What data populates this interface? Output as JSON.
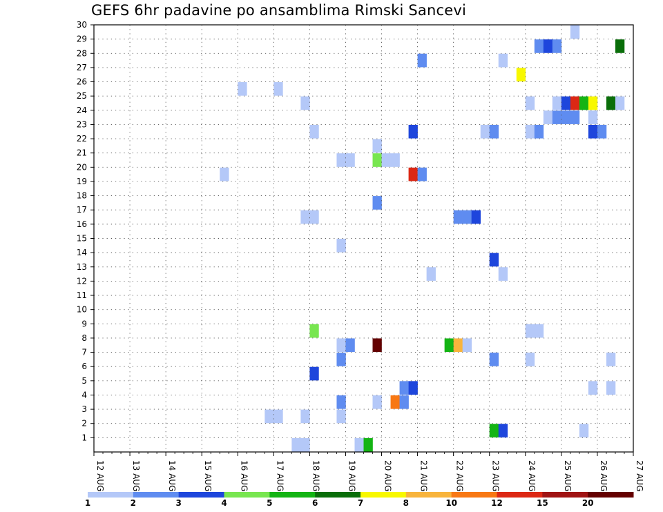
{
  "chart_data": {
    "type": "heatmap",
    "title": "GEFS 6hr padavine po ansamblima Rimski Sancevi",
    "xlabel": "",
    "ylabel": "",
    "x_tick_labels": [
      "12 AUG",
      "13 AUG",
      "14 AUG",
      "15 AUG",
      "16 AUG",
      "17 AUG",
      "18 AUG",
      "19 AUG",
      "20 AUG",
      "21 AUG",
      "22 AUG",
      "23 AUG",
      "24 AUG",
      "25 AUG",
      "26 AUG",
      "27 AUG"
    ],
    "x_range_days": [
      0,
      15
    ],
    "y_tick_labels": [
      "1",
      "2",
      "3",
      "4",
      "5",
      "6",
      "7",
      "8",
      "9",
      "10",
      "11",
      "12",
      "13",
      "14",
      "15",
      "16",
      "17",
      "18",
      "19",
      "20",
      "21",
      "22",
      "23",
      "24",
      "25",
      "26",
      "27",
      "28",
      "29",
      "30"
    ],
    "y_range": [
      0,
      30
    ],
    "grid": true,
    "colors": [
      "#b4c8f8",
      "#5f8cf0",
      "#1e46dc",
      "#78e650",
      "#14b414",
      "#0a6e0a",
      "#f8f800",
      "#f8b43c",
      "#f87814",
      "#dc2814",
      "#a01414",
      "#640000"
    ],
    "colorbar_labels": [
      "1",
      "2",
      "3",
      "4",
      "5",
      "6",
      "7",
      "8",
      "10",
      "12",
      "15",
      "20"
    ],
    "cells_note": "each cell: x = day offset from 12 AUG 00Z (6-hourly steps), y = ensemble member, v = color class index",
    "cells": [
      {
        "x": 5.5,
        "y": 0,
        "v": 0
      },
      {
        "x": 5.75,
        "y": 0,
        "v": 0
      },
      {
        "x": 7.25,
        "y": 0,
        "v": 0
      },
      {
        "x": 7.5,
        "y": 0,
        "v": 4
      },
      {
        "x": 11.0,
        "y": 1,
        "v": 4
      },
      {
        "x": 11.25,
        "y": 1,
        "v": 2
      },
      {
        "x": 13.5,
        "y": 1,
        "v": 0
      },
      {
        "x": 4.75,
        "y": 2,
        "v": 0
      },
      {
        "x": 5.0,
        "y": 2,
        "v": 0
      },
      {
        "x": 5.75,
        "y": 2,
        "v": 0
      },
      {
        "x": 6.75,
        "y": 2,
        "v": 0
      },
      {
        "x": 6.75,
        "y": 3,
        "v": 1
      },
      {
        "x": 7.75,
        "y": 3,
        "v": 0
      },
      {
        "x": 8.25,
        "y": 3,
        "v": 8
      },
      {
        "x": 8.5,
        "y": 3,
        "v": 1
      },
      {
        "x": 8.5,
        "y": 4,
        "v": 1
      },
      {
        "x": 8.75,
        "y": 4,
        "v": 2
      },
      {
        "x": 13.75,
        "y": 4,
        "v": 0
      },
      {
        "x": 14.25,
        "y": 4,
        "v": 0
      },
      {
        "x": 6.0,
        "y": 5,
        "v": 2
      },
      {
        "x": 6.75,
        "y": 6,
        "v": 1
      },
      {
        "x": 11.0,
        "y": 6,
        "v": 1
      },
      {
        "x": 12.0,
        "y": 6,
        "v": 0
      },
      {
        "x": 14.25,
        "y": 6,
        "v": 0
      },
      {
        "x": 6.75,
        "y": 7,
        "v": 0
      },
      {
        "x": 7.0,
        "y": 7,
        "v": 1
      },
      {
        "x": 7.75,
        "y": 7,
        "v": 11
      },
      {
        "x": 9.75,
        "y": 7,
        "v": 4
      },
      {
        "x": 10.0,
        "y": 7,
        "v": 7
      },
      {
        "x": 10.25,
        "y": 7,
        "v": 0
      },
      {
        "x": 6.0,
        "y": 8,
        "v": 3
      },
      {
        "x": 12.0,
        "y": 8,
        "v": 0
      },
      {
        "x": 12.25,
        "y": 8,
        "v": 0
      },
      {
        "x": 9.25,
        "y": 12,
        "v": 0
      },
      {
        "x": 11.25,
        "y": 12,
        "v": 0
      },
      {
        "x": 11.0,
        "y": 13,
        "v": 2
      },
      {
        "x": 6.75,
        "y": 14,
        "v": 0
      },
      {
        "x": 5.75,
        "y": 16,
        "v": 0
      },
      {
        "x": 6.0,
        "y": 16,
        "v": 0
      },
      {
        "x": 10.0,
        "y": 16,
        "v": 1
      },
      {
        "x": 10.25,
        "y": 16,
        "v": 1
      },
      {
        "x": 10.5,
        "y": 16,
        "v": 2
      },
      {
        "x": 7.75,
        "y": 17,
        "v": 1
      },
      {
        "x": 3.5,
        "y": 19,
        "v": 0
      },
      {
        "x": 8.75,
        "y": 19,
        "v": 9
      },
      {
        "x": 9.0,
        "y": 19,
        "v": 1
      },
      {
        "x": 6.75,
        "y": 20,
        "v": 0
      },
      {
        "x": 7.0,
        "y": 20,
        "v": 0
      },
      {
        "x": 7.75,
        "y": 20,
        "v": 3
      },
      {
        "x": 8.0,
        "y": 20,
        "v": 0
      },
      {
        "x": 8.25,
        "y": 20,
        "v": 0
      },
      {
        "x": 7.75,
        "y": 21,
        "v": 0
      },
      {
        "x": 6.0,
        "y": 22,
        "v": 0
      },
      {
        "x": 8.75,
        "y": 22,
        "v": 2
      },
      {
        "x": 10.75,
        "y": 22,
        "v": 0
      },
      {
        "x": 11.0,
        "y": 22,
        "v": 1
      },
      {
        "x": 12.0,
        "y": 22,
        "v": 0
      },
      {
        "x": 12.25,
        "y": 22,
        "v": 1
      },
      {
        "x": 13.75,
        "y": 22,
        "v": 2
      },
      {
        "x": 14.0,
        "y": 22,
        "v": 1
      },
      {
        "x": 12.5,
        "y": 23,
        "v": 0
      },
      {
        "x": 12.75,
        "y": 23,
        "v": 1
      },
      {
        "x": 13.0,
        "y": 23,
        "v": 1
      },
      {
        "x": 13.25,
        "y": 23,
        "v": 1
      },
      {
        "x": 13.75,
        "y": 23,
        "v": 0
      },
      {
        "x": 5.75,
        "y": 24,
        "v": 0
      },
      {
        "x": 12.0,
        "y": 24,
        "v": 0
      },
      {
        "x": 12.75,
        "y": 24,
        "v": 0
      },
      {
        "x": 13.0,
        "y": 24,
        "v": 2
      },
      {
        "x": 13.25,
        "y": 24,
        "v": 9
      },
      {
        "x": 13.5,
        "y": 24,
        "v": 4
      },
      {
        "x": 13.75,
        "y": 24,
        "v": 6
      },
      {
        "x": 14.25,
        "y": 24,
        "v": 5
      },
      {
        "x": 14.5,
        "y": 24,
        "v": 0
      },
      {
        "x": 4.0,
        "y": 25,
        "v": 0
      },
      {
        "x": 5.0,
        "y": 25,
        "v": 0
      },
      {
        "x": 11.75,
        "y": 26,
        "v": 6
      },
      {
        "x": 9.0,
        "y": 27,
        "v": 1
      },
      {
        "x": 11.25,
        "y": 27,
        "v": 0
      },
      {
        "x": 12.25,
        "y": 28,
        "v": 1
      },
      {
        "x": 12.5,
        "y": 28,
        "v": 2
      },
      {
        "x": 12.75,
        "y": 28,
        "v": 1
      },
      {
        "x": 14.5,
        "y": 28,
        "v": 5
      },
      {
        "x": 13.25,
        "y": 29,
        "v": 0
      }
    ]
  }
}
